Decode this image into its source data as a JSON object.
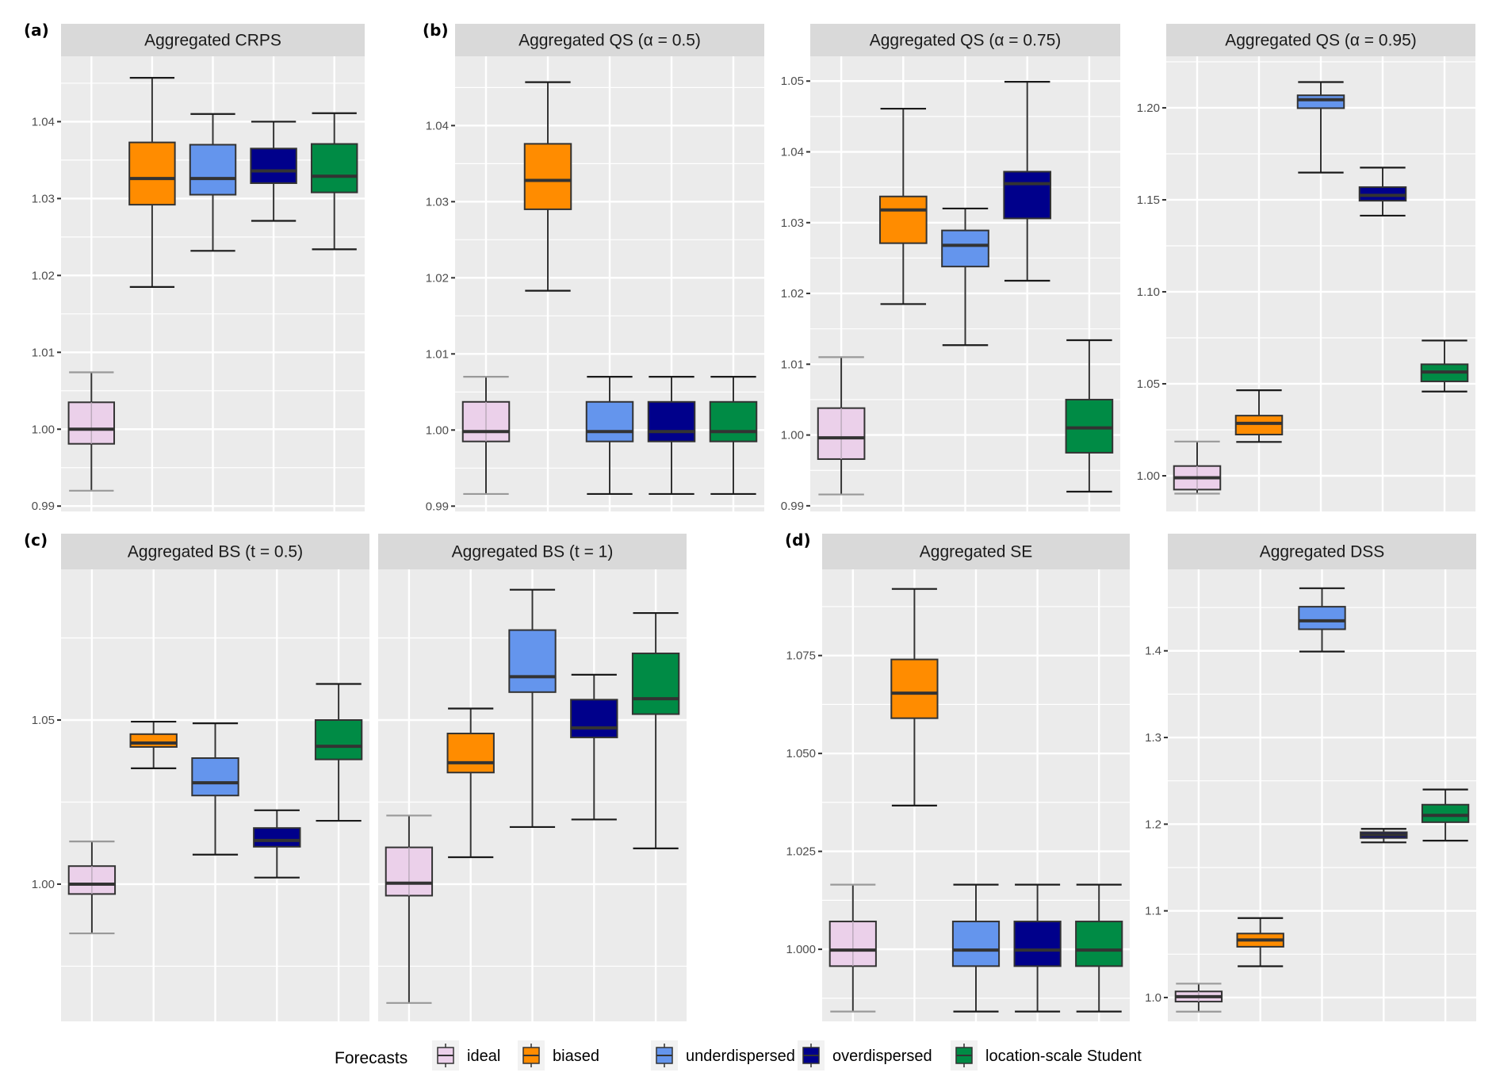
{
  "legend": {
    "title": "Forecasts",
    "entries": [
      {
        "key": "ideal",
        "label": "ideal",
        "color": "#EBD0EA"
      },
      {
        "key": "biased",
        "label": "biased",
        "color": "#FF8C00"
      },
      {
        "key": "underdispersed",
        "label": "underdispersed",
        "color": "#6495ED"
      },
      {
        "key": "overdispersed",
        "label": "overdispersed",
        "color": "#00008B"
      },
      {
        "key": "lss",
        "label": "location-scale Student",
        "color": "#008B45"
      }
    ]
  },
  "chart_data": [
    {
      "type": "boxplot",
      "tag": "(a)",
      "title": "Aggregated CRPS",
      "ylim": [
        0.9893,
        1.0485
      ],
      "yticks": [
        0.99,
        1.0,
        1.01,
        1.02,
        1.03,
        1.04
      ],
      "ytick_labels": [
        "0.99",
        "1.00",
        "1.01",
        "1.02",
        "1.03",
        "1.04"
      ],
      "show_y_labels": true,
      "grid": true,
      "categories": [
        "ideal",
        "biased",
        "underdispersed",
        "overdispersed",
        "location-scale Student"
      ],
      "boxes": [
        {
          "min": 0.992,
          "q1": 0.9981,
          "median": 1.0,
          "q3": 1.0035,
          "max": 1.0074
        },
        {
          "min": 1.0185,
          "q1": 1.0292,
          "median": 1.0326,
          "q3": 1.0373,
          "max": 1.0457
        },
        {
          "min": 1.0232,
          "q1": 1.0305,
          "median": 1.0326,
          "q3": 1.037,
          "max": 1.041
        },
        {
          "min": 1.0271,
          "q1": 1.032,
          "median": 1.0336,
          "q3": 1.0365,
          "max": 1.04
        },
        {
          "min": 1.0234,
          "q1": 1.0308,
          "median": 1.0329,
          "q3": 1.0371,
          "max": 1.0411
        }
      ]
    },
    {
      "type": "boxplot",
      "tag": "(b)",
      "title": "Aggregated QS (α = 0.5)",
      "ylim": [
        0.9893,
        1.0491
      ],
      "yticks": [
        0.99,
        1.0,
        1.01,
        1.02,
        1.03,
        1.04
      ],
      "ytick_labels": [
        "0.99",
        "1.00",
        "1.01",
        "1.02",
        "1.03",
        "1.04"
      ],
      "show_y_labels": true,
      "grid": true,
      "categories": [
        "ideal",
        "biased",
        "underdispersed",
        "overdispersed",
        "location-scale Student"
      ],
      "boxes": [
        {
          "min": 0.9916,
          "q1": 0.9985,
          "median": 0.9998,
          "q3": 1.0037,
          "max": 1.007
        },
        {
          "min": 1.0183,
          "q1": 1.029,
          "median": 1.0328,
          "q3": 1.0376,
          "max": 1.0457
        },
        {
          "min": 0.9916,
          "q1": 0.9985,
          "median": 0.9998,
          "q3": 1.0037,
          "max": 1.007
        },
        {
          "min": 0.9916,
          "q1": 0.9985,
          "median": 0.9998,
          "q3": 1.0037,
          "max": 1.007
        },
        {
          "min": 0.9916,
          "q1": 0.9985,
          "median": 0.9998,
          "q3": 1.0037,
          "max": 1.007
        }
      ]
    },
    {
      "type": "boxplot",
      "tag": "",
      "title": "Aggregated QS (α = 0.75)",
      "ylim": [
        0.9892,
        1.0535
      ],
      "yticks": [
        0.99,
        1.0,
        1.01,
        1.02,
        1.03,
        1.04,
        1.05
      ],
      "ytick_labels": [
        "0.99",
        "1.00",
        "1.01",
        "1.02",
        "1.03",
        "1.04",
        "1.05"
      ],
      "show_y_labels": true,
      "grid": true,
      "categories": [
        "ideal",
        "biased",
        "underdispersed",
        "overdispersed",
        "location-scale Student"
      ],
      "boxes": [
        {
          "min": 0.9916,
          "q1": 0.9966,
          "median": 0.9996,
          "q3": 1.0038,
          "max": 1.011
        },
        {
          "min": 1.0185,
          "q1": 1.0271,
          "median": 1.0318,
          "q3": 1.0337,
          "max": 1.0461
        },
        {
          "min": 1.0127,
          "q1": 1.0238,
          "median": 1.0268,
          "q3": 1.0289,
          "max": 1.032
        },
        {
          "min": 1.0218,
          "q1": 1.0306,
          "median": 1.0355,
          "q3": 1.0372,
          "max": 1.0499
        },
        {
          "min": 0.992,
          "q1": 0.9975,
          "median": 1.001,
          "q3": 1.005,
          "max": 1.0134
        }
      ]
    },
    {
      "type": "boxplot",
      "tag": "",
      "title": "Aggregated QS (α = 0.95)",
      "ylim": [
        0.9806,
        1.228
      ],
      "yticks": [
        1.0,
        1.05,
        1.1,
        1.15,
        1.2
      ],
      "ytick_labels": [
        "1.00",
        "1.05",
        "1.10",
        "1.15",
        "1.20"
      ],
      "show_y_labels": true,
      "grid": true,
      "categories": [
        "ideal",
        "biased",
        "underdispersed",
        "overdispersed",
        "location-scale Student"
      ],
      "boxes": [
        {
          "min": 0.9903,
          "q1": 0.9925,
          "median": 0.9989,
          "q3": 1.0053,
          "max": 1.0186
        },
        {
          "min": 1.0184,
          "q1": 1.0224,
          "median": 1.0285,
          "q3": 1.0327,
          "max": 1.0465
        },
        {
          "min": 1.1648,
          "q1": 1.1998,
          "median": 1.2044,
          "q3": 1.2068,
          "max": 1.214
        },
        {
          "min": 1.1414,
          "q1": 1.1495,
          "median": 1.1524,
          "q3": 1.1569,
          "max": 1.1675
        },
        {
          "min": 1.0458,
          "q1": 1.0513,
          "median": 1.0564,
          "q3": 1.0606,
          "max": 1.0735
        }
      ]
    },
    {
      "type": "boxplot",
      "tag": "(c)",
      "title": "Aggregated BS (t = 0.5)",
      "ylim": [
        0.9582,
        1.0959
      ],
      "yticks": [
        1.0,
        1.05
      ],
      "ytick_labels": [
        "1.00",
        "1.05"
      ],
      "show_y_labels": true,
      "grid": true,
      "categories": [
        "ideal",
        "biased",
        "underdispersed",
        "overdispersed",
        "location-scale Student"
      ],
      "boxes": [
        {
          "min": 0.985,
          "q1": 0.997,
          "median": 1.0,
          "q3": 1.0055,
          "max": 1.013
        },
        {
          "min": 1.0353,
          "q1": 1.0418,
          "median": 1.043,
          "q3": 1.0457,
          "max": 1.0495
        },
        {
          "min": 1.009,
          "q1": 1.027,
          "median": 1.0309,
          "q3": 1.0384,
          "max": 1.049
        },
        {
          "min": 1.002,
          "q1": 1.0114,
          "median": 1.0133,
          "q3": 1.0171,
          "max": 1.0225
        },
        {
          "min": 1.0193,
          "q1": 1.038,
          "median": 1.042,
          "q3": 1.05,
          "max": 1.061
        }
      ]
    },
    {
      "type": "boxplot",
      "tag": "",
      "title": "Aggregated BS (t = 1)",
      "ylim": [
        0.9582,
        1.0959
      ],
      "yticks": [
        1.0,
        1.05
      ],
      "ytick_labels": [
        "1.00",
        "1.05"
      ],
      "show_y_labels": false,
      "grid": true,
      "categories": [
        "ideal",
        "biased",
        "underdispersed",
        "overdispersed",
        "location-scale Student"
      ],
      "boxes": [
        {
          "min": 0.9638,
          "q1": 0.9965,
          "median": 1.0003,
          "q3": 1.0112,
          "max": 1.0209
        },
        {
          "min": 1.0082,
          "q1": 1.034,
          "median": 1.037,
          "q3": 1.0459,
          "max": 1.0535
        },
        {
          "min": 1.0174,
          "q1": 1.0585,
          "median": 1.0632,
          "q3": 1.0774,
          "max": 1.0897
        },
        {
          "min": 1.0197,
          "q1": 1.0447,
          "median": 1.0476,
          "q3": 1.0562,
          "max": 1.0638
        },
        {
          "min": 1.0109,
          "q1": 1.0518,
          "median": 1.0565,
          "q3": 1.0703,
          "max": 1.0826
        }
      ]
    },
    {
      "type": "boxplot",
      "tag": "(d)",
      "title": "Aggregated SE",
      "ylim": [
        0.9816,
        1.097
      ],
      "yticks": [
        1.0,
        1.025,
        1.05,
        1.075
      ],
      "ytick_labels": [
        "1.000",
        "1.025",
        "1.050",
        "1.075"
      ],
      "show_y_labels": true,
      "grid": true,
      "categories": [
        "ideal",
        "biased",
        "underdispersed",
        "overdispersed",
        "location-scale Student"
      ],
      "boxes": [
        {
          "min": 0.9841,
          "q1": 0.9957,
          "median": 0.9998,
          "q3": 1.0071,
          "max": 1.0165
        },
        {
          "min": 1.0367,
          "q1": 1.059,
          "median": 1.0654,
          "q3": 1.074,
          "max": 1.092
        },
        {
          "min": 0.9841,
          "q1": 0.9957,
          "median": 0.9998,
          "q3": 1.0071,
          "max": 1.0165
        },
        {
          "min": 0.9841,
          "q1": 0.9957,
          "median": 0.9998,
          "q3": 1.0071,
          "max": 1.0165
        },
        {
          "min": 0.9841,
          "q1": 0.9957,
          "median": 0.9998,
          "q3": 1.0071,
          "max": 1.0165
        }
      ]
    },
    {
      "type": "boxplot",
      "tag": "",
      "title": "Aggregated DSS",
      "ylim": [
        0.9725,
        1.494
      ],
      "yticks": [
        1.0,
        1.1,
        1.2,
        1.3,
        1.4
      ],
      "ytick_labels": [
        "1.0",
        "1.1",
        "1.2",
        "1.3",
        "1.4"
      ],
      "show_y_labels": true,
      "grid": true,
      "categories": [
        "ideal",
        "biased",
        "underdispersed",
        "overdispersed",
        "location-scale Student"
      ],
      "boxes": [
        {
          "min": 0.9837,
          "q1": 0.9953,
          "median": 1.001,
          "q3": 1.007,
          "max": 1.016
        },
        {
          "min": 1.0361,
          "q1": 1.0586,
          "median": 1.0664,
          "q3": 1.0738,
          "max": 1.0917
        },
        {
          "min": 1.3992,
          "q1": 1.4249,
          "median": 1.4346,
          "q3": 1.4509,
          "max": 1.4722
        },
        {
          "min": 1.179,
          "q1": 1.1841,
          "median": 1.1876,
          "q3": 1.1907,
          "max": 1.1946
        },
        {
          "min": 1.181,
          "q1": 1.2023,
          "median": 1.2101,
          "q3": 1.2225,
          "max": 1.24
        }
      ]
    }
  ]
}
